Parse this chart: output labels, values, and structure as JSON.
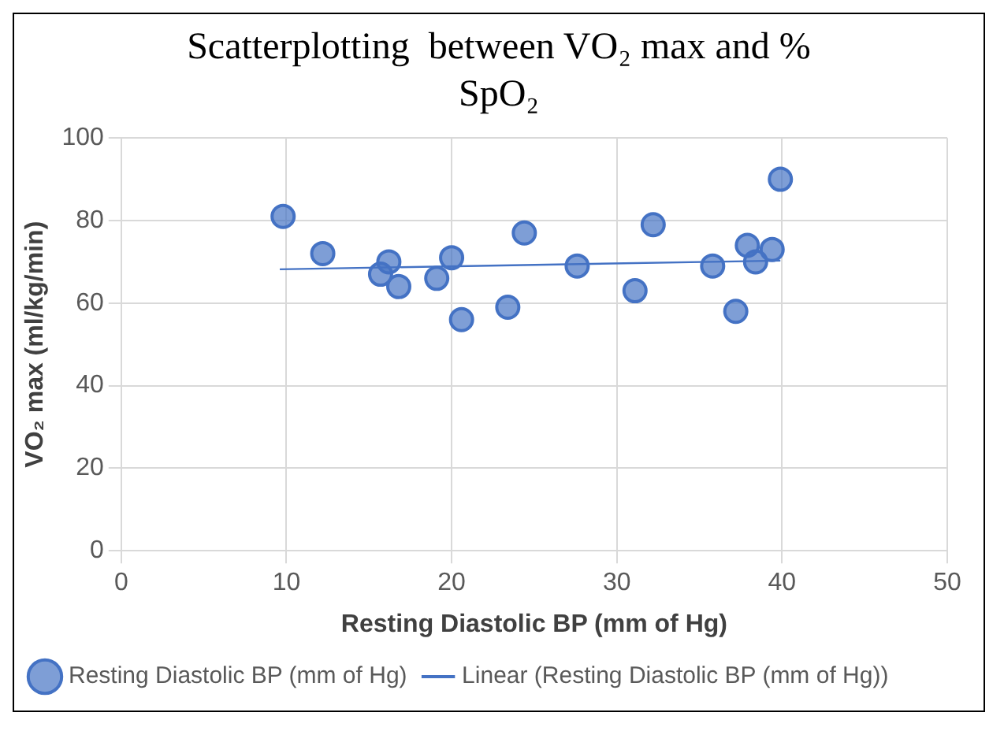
{
  "chart_data": {
    "type": "scatter",
    "title": "Scatterplotting  between VO₂ max and % SpO₂",
    "xlabel": "Resting Diastolic BP (mm of Hg)",
    "ylabel": "VO₂ max (ml/kg/min)",
    "series": [
      {
        "name": "Resting Diastolic BP (mm of Hg)",
        "color": "#4472c4",
        "marker": "circle",
        "x": [
          9.8,
          12.2,
          16.2,
          15.7,
          16.8,
          19.1,
          20.0,
          20.6,
          23.4,
          24.4,
          27.6,
          31.1,
          32.2,
          35.8,
          37.2,
          37.9,
          38.4,
          39.4,
          39.9
        ],
        "values": [
          81,
          72,
          70,
          67,
          64,
          66,
          71,
          56,
          59,
          77,
          69,
          63,
          79,
          69,
          58,
          74,
          70,
          73,
          90
        ]
      },
      {
        "name": "Linear (Resting Diastolic BP (mm of Hg))",
        "type": "line",
        "color": "#4472c4",
        "marker": "none",
        "line_style": "solid",
        "x": [
          9.6,
          39.9
        ],
        "values": [
          68.2,
          70.3
        ]
      }
    ],
    "xlim": [
      0,
      50
    ],
    "xticks": [
      0,
      10,
      20,
      30,
      40,
      50
    ],
    "ylim": [
      0,
      100
    ],
    "yticks": [
      0,
      20,
      40,
      60,
      80,
      100
    ],
    "grid": true,
    "legend": "bottom"
  }
}
